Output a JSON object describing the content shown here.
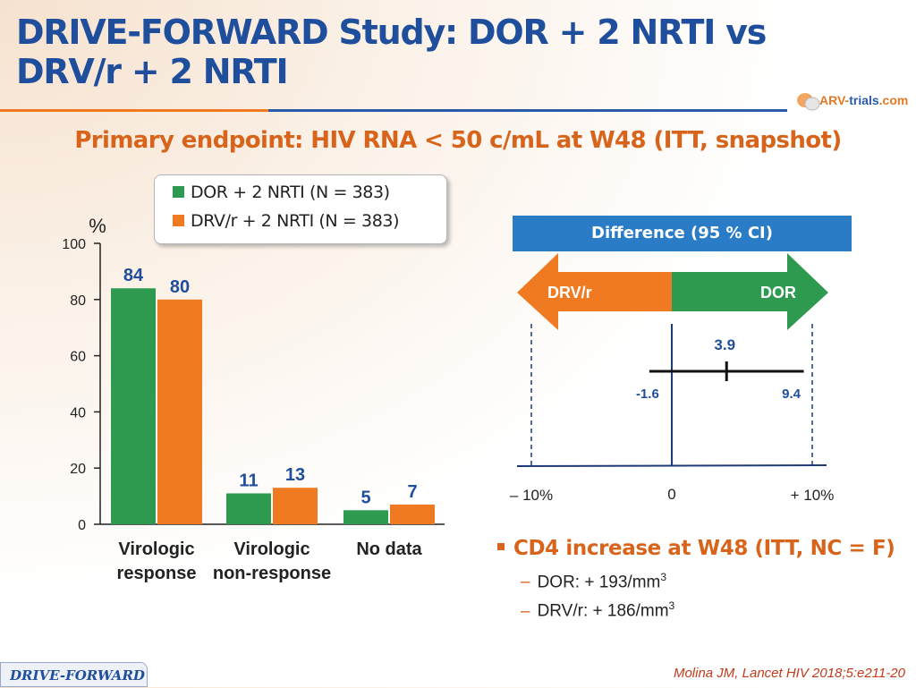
{
  "slide": {
    "title": "DRIVE-FORWARD Study: DOR + 2 NRTI vs DRV/r + 2 NRTI",
    "subtitle": "Primary endpoint: HIV RNA < 50 c/mL at W48 (ITT, snapshot)",
    "logo_part1": "ARV-",
    "logo_part2": "trials",
    "logo_part3": ".com",
    "footer_tag": "DRIVE-FORWARD",
    "citation": "Molina JM, Lancet HIV 2018;5:e211-20"
  },
  "colors": {
    "dor": "#2e9a50",
    "drv": "#f07a22",
    "title": "#1f4e9c",
    "accent": "#d7641a",
    "ci_header": "#2a7cc7"
  },
  "chart_data": [
    {
      "type": "bar",
      "y_unit_label": "%",
      "categories": [
        "Virologic response",
        "Virologic non-response",
        "No data"
      ],
      "category_lines": [
        [
          "Virologic",
          "response"
        ],
        [
          "Virologic",
          "non-response"
        ],
        [
          "No data"
        ]
      ],
      "series": [
        {
          "name": "DOR + 2 NRTI (N = 383)",
          "values": [
            84,
            11,
            5
          ]
        },
        {
          "name": "DRV/r + 2 NRTI (N = 383)",
          "values": [
            80,
            13,
            7
          ]
        }
      ],
      "ylim": [
        0,
        100
      ],
      "yticks": [
        0,
        20,
        40,
        60,
        80,
        100
      ],
      "legend": "top"
    },
    {
      "type": "forest",
      "title": "Difference (95 % CI)",
      "left_label": "DRV/r",
      "right_label": "DOR",
      "point_estimate": 3.9,
      "ci_low": -1.6,
      "ci_high": 9.4,
      "point_label": "3.9",
      "ci_low_label": "-1.6",
      "ci_high_label": "9.4",
      "xlim": [
        -10,
        10
      ],
      "ticks": [
        {
          "value": -10,
          "label": "– 10%"
        },
        {
          "value": 0,
          "label": "0"
        },
        {
          "value": 10,
          "label": "+ 10%"
        }
      ],
      "margin_lines": [
        -10,
        10
      ]
    }
  ],
  "cd4": {
    "title": "CD4 increase at W48 (ITT, NC = F)",
    "items": [
      {
        "text": "DOR: + 193/mm",
        "sup": "3"
      },
      {
        "text": "DRV/r: + 186/mm",
        "sup": "3"
      }
    ]
  }
}
